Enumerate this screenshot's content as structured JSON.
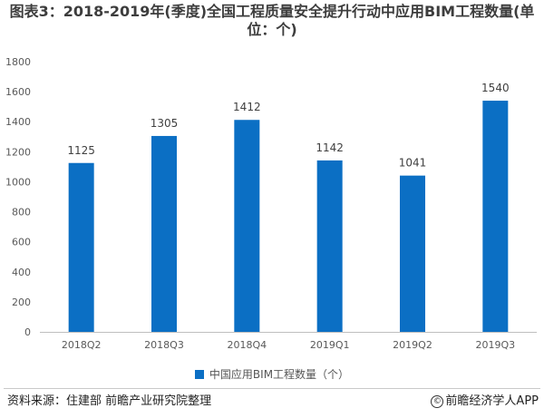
{
  "title": "图表3：2018-2019年(季度)全国工程质量安全提升行动中应用BIM工程数量(单位：个)",
  "chart_data": {
    "type": "bar",
    "categories": [
      "2018Q2",
      "2018Q3",
      "2018Q4",
      "2019Q1",
      "2019Q2",
      "2019Q3"
    ],
    "series": [
      {
        "name": "中国应用BIM工程数量（个）",
        "values": [
          1125,
          1305,
          1412,
          1142,
          1041,
          1540
        ]
      }
    ],
    "ylim": [
      0,
      1800
    ],
    "yticks": [
      0,
      200,
      400,
      600,
      800,
      1000,
      1200,
      1400,
      1600,
      1800
    ],
    "grid": false,
    "legend": "bottom-center",
    "data_labels": true,
    "colors": {
      "bar": "#0b6fc4",
      "axis": "#bfbfbf",
      "tick_text": "#595959",
      "label_text": "#404040"
    }
  },
  "footer": {
    "source": "资料来源：住建部 前瞻产业研究院整理",
    "brand": "前瞻经济学人APP",
    "brand_icon": "copyright-icon"
  }
}
